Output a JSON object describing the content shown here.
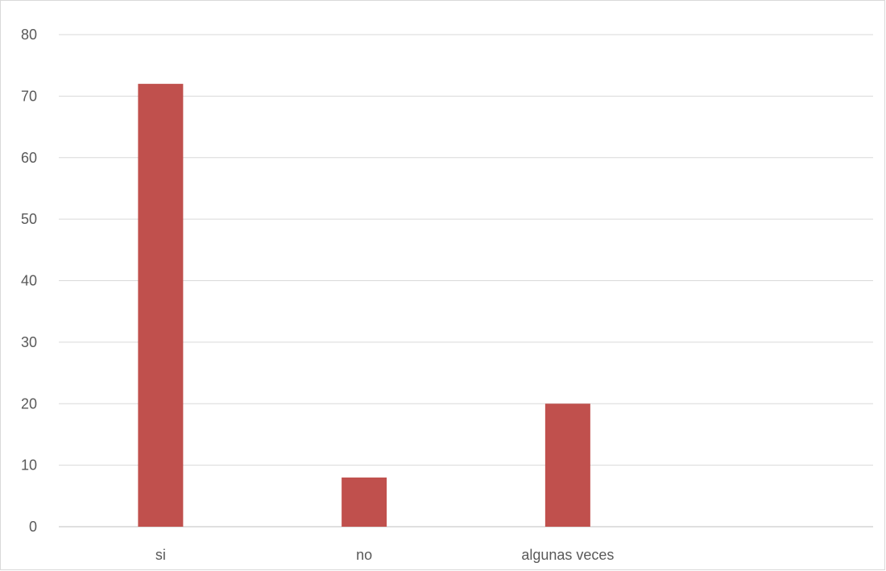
{
  "chart_data": {
    "type": "bar",
    "title": "",
    "xlabel": "",
    "ylabel": "",
    "categories": [
      "si",
      "no",
      "algunas veces",
      ""
    ],
    "values": [
      72,
      8,
      20,
      null
    ],
    "ylim": [
      0,
      80
    ],
    "yticks": [
      0,
      10,
      20,
      30,
      40,
      50,
      60,
      70,
      80
    ],
    "grid": true,
    "legend": "none",
    "bar_color": "#c0504d"
  }
}
